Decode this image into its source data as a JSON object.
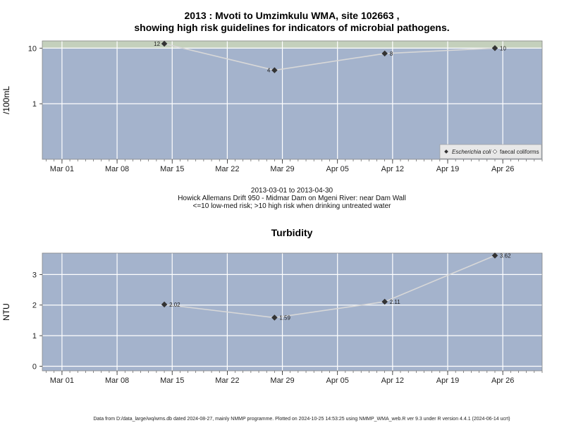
{
  "chart_data": [
    {
      "type": "line",
      "title_line1": "2013 : Mvoti to Umzimkulu WMA, site 102663 ,",
      "title_line2": "showing high risk guidelines for indicators of microbial pathogens.",
      "ylabel": "/100mL",
      "y_scale": "log",
      "ylim": [
        0.1,
        13.5
      ],
      "y_ticks": [
        1,
        10
      ],
      "y_tick_labels": [
        "1",
        "10"
      ],
      "guideline": {
        "low_med_max": 10,
        "shade": "above",
        "color": "#c4d0bc"
      },
      "x_ticks": [
        "Mar 01",
        "Mar 08",
        "Mar 15",
        "Mar 22",
        "Mar 29",
        "Apr 05",
        "Apr 12",
        "Apr 19",
        "Apr 26"
      ],
      "x_day_range": [
        -2.5,
        61
      ],
      "series": [
        {
          "name": "Escherichia coli",
          "x": [
            "2013-03-14",
            "2013-03-28",
            "2013-04-11",
            "2013-04-25"
          ],
          "values": [
            12,
            4,
            8,
            10
          ]
        }
      ],
      "data_labels": [
        "12",
        "4",
        "8",
        "10"
      ],
      "legend": {
        "position": "bottom-right",
        "entries": [
          "Escherichia coli",
          "faecal coliforms"
        ]
      },
      "subtitle_lines": [
        "2013-03-01 to 2013-04-30",
        "Howick Allemans Drift 950 - Midmar Dam on Mgeni River: near Dam Wall",
        "<=10 low-med risk; >10 high risk when drinking untreated water"
      ],
      "grid": true,
      "colors": {
        "panel": "#a4b3cc",
        "grid": "#ffffff",
        "line": "#d8d8d8",
        "point": "#333333"
      }
    },
    {
      "type": "line",
      "title": "Turbidity",
      "ylabel": "NTU",
      "ylim": [
        -0.15,
        3.7
      ],
      "y_ticks": [
        0,
        1,
        2,
        3
      ],
      "y_tick_labels": [
        "0",
        "1",
        "2",
        "3"
      ],
      "x_ticks": [
        "Mar 01",
        "Mar 08",
        "Mar 15",
        "Mar 22",
        "Mar 29",
        "Apr 05",
        "Apr 12",
        "Apr 19",
        "Apr 26"
      ],
      "x_day_range": [
        -2.5,
        61
      ],
      "series": [
        {
          "x": [
            "2013-03-14",
            "2013-03-28",
            "2013-04-11",
            "2013-04-25"
          ],
          "values": [
            2.02,
            1.59,
            2.11,
            3.62
          ]
        }
      ],
      "data_labels": [
        "2.02",
        "1.59",
        "2.11",
        "3.62"
      ],
      "grid": true,
      "colors": {
        "panel": "#a4b3cc",
        "grid": "#ffffff",
        "line": "#d8d8d8",
        "point": "#333333"
      }
    }
  ],
  "footer": "Data from D:/data_large/wq/wms.db dated 2024-08-27, mainly NMMP programme. Plotted on 2024-10-25 14:53:25 using NMMP_WMA_web.R ver 9.3 under R version 4.4.1 (2024-06-14 ucrt)"
}
